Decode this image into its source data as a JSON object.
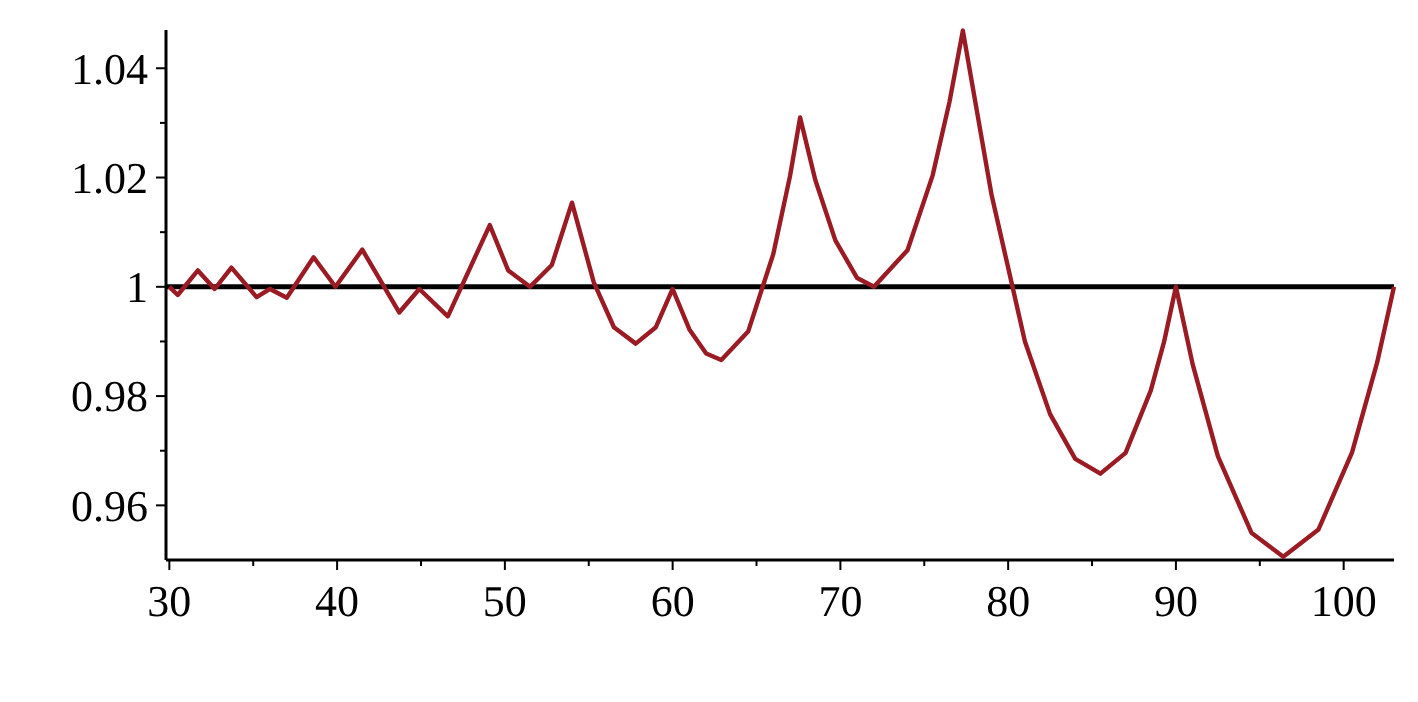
{
  "chart_data": {
    "type": "line",
    "x": [
      30.0,
      30.5,
      31.7,
      32.7,
      33.7,
      35.2,
      36.0,
      37.0,
      38.6,
      39.9,
      41.5,
      43.7,
      44.9,
      46.6,
      49.1,
      50.2,
      51.5,
      52.8,
      54.0,
      55.3,
      56.5,
      57.8,
      59.0,
      60.0,
      61.0,
      62.0,
      62.9,
      64.5,
      66.0,
      67.0,
      67.6,
      68.5,
      69.7,
      71.0,
      72.0,
      74.0,
      75.5,
      76.5,
      77.3,
      79.0,
      81.0,
      82.5,
      84.0,
      85.5,
      87.0,
      88.5,
      89.3,
      90.0,
      91.0,
      92.5,
      94.5,
      96.4,
      98.5,
      100.5,
      102.0,
      103.0
    ],
    "series": [
      {
        "color": "#9b1b24",
        "values": [
          1.0,
          0.9985,
          1.003,
          0.9996,
          1.0035,
          0.9981,
          0.9996,
          0.998,
          1.0054,
          1.0,
          1.0068,
          0.9953,
          0.9996,
          0.9946,
          1.0113,
          1.003,
          1.0,
          1.004,
          1.0154,
          1.0008,
          0.9926,
          0.9896,
          0.9926,
          0.9996,
          0.9922,
          0.9878,
          0.9866,
          0.9918,
          1.006,
          1.0203,
          1.031,
          1.0196,
          1.0085,
          1.0016,
          1.0,
          1.0067,
          1.0204,
          1.0338,
          1.0469,
          1.017,
          0.99,
          0.9767,
          0.9685,
          0.9658,
          0.9696,
          0.981,
          0.99,
          1.0,
          0.9858,
          0.969,
          0.955,
          0.9506,
          0.9556,
          0.9697,
          0.9862,
          1.0
        ]
      }
    ],
    "xlim": [
      29.8,
      103
    ],
    "ylim": [
      0.95,
      1.047
    ],
    "xticks": [
      30,
      {
        "value": 35,
        "label": null
      },
      40,
      {
        "value": 45,
        "label": null
      },
      50,
      {
        "value": 55,
        "label": null
      },
      60,
      {
        "value": 65,
        "label": null
      },
      70,
      {
        "value": 75,
        "label": null
      },
      80,
      {
        "value": 85,
        "label": null
      },
      90,
      {
        "value": 95,
        "label": null
      },
      100
    ],
    "yticks": [
      0.96,
      {
        "value": 0.97,
        "label": null
      },
      0.98,
      {
        "value": 0.99,
        "label": null
      },
      1,
      {
        "value": 1.01,
        "label": null
      },
      1.02,
      {
        "value": 1.03,
        "label": null
      },
      1.04
    ],
    "ref_lines": [
      {
        "axis": "y",
        "value": 1,
        "color": "#000000"
      }
    ],
    "marker": "none",
    "line_style": "solid"
  }
}
